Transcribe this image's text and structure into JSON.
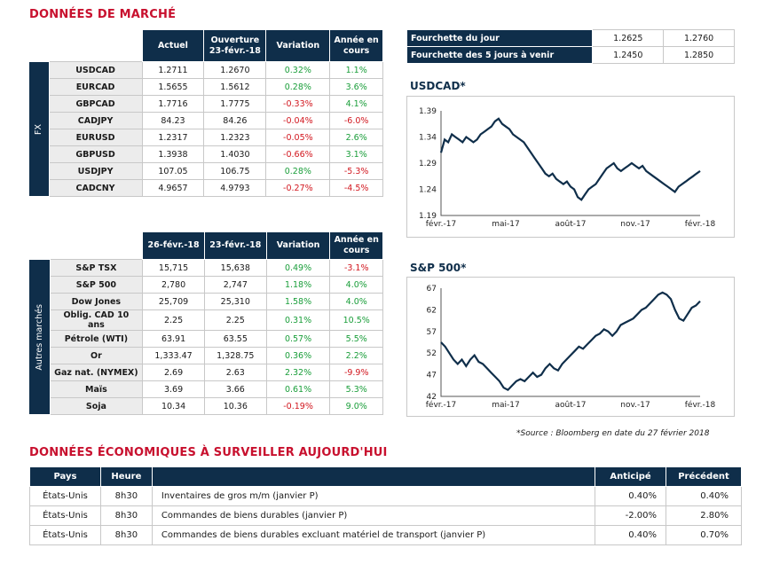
{
  "market_title": "DONNÉES DE MARCHÉ",
  "fx": {
    "side_label": "FX",
    "headers": [
      "Actuel",
      "Ouverture 23-févr.-18",
      "Variation",
      "Année en cours"
    ],
    "rows": [
      {
        "label": "USDCAD",
        "actuel": "1.2711",
        "ouverture": "1.2670",
        "variation": "0.32%",
        "ytd": "1.1%",
        "var_dir": "pos",
        "ytd_dir": "pos"
      },
      {
        "label": "EURCAD",
        "actuel": "1.5655",
        "ouverture": "1.5612",
        "variation": "0.28%",
        "ytd": "3.6%",
        "var_dir": "pos",
        "ytd_dir": "pos"
      },
      {
        "label": "GBPCAD",
        "actuel": "1.7716",
        "ouverture": "1.7775",
        "variation": "-0.33%",
        "ytd": "4.1%",
        "var_dir": "neg",
        "ytd_dir": "pos"
      },
      {
        "label": "CADJPY",
        "actuel": "84.23",
        "ouverture": "84.26",
        "variation": "-0.04%",
        "ytd": "-6.0%",
        "var_dir": "neg",
        "ytd_dir": "neg"
      },
      {
        "label": "EURUSD",
        "actuel": "1.2317",
        "ouverture": "1.2323",
        "variation": "-0.05%",
        "ytd": "2.6%",
        "var_dir": "neg",
        "ytd_dir": "pos"
      },
      {
        "label": "GBPUSD",
        "actuel": "1.3938",
        "ouverture": "1.4030",
        "variation": "-0.66%",
        "ytd": "3.1%",
        "var_dir": "neg",
        "ytd_dir": "pos"
      },
      {
        "label": "USDJPY",
        "actuel": "107.05",
        "ouverture": "106.75",
        "variation": "0.28%",
        "ytd": "-5.3%",
        "var_dir": "pos",
        "ytd_dir": "neg"
      },
      {
        "label": "CADCNY",
        "actuel": "4.9657",
        "ouverture": "4.9793",
        "variation": "-0.27%",
        "ytd": "-4.5%",
        "var_dir": "neg",
        "ytd_dir": "neg"
      }
    ]
  },
  "ranges": [
    {
      "label": "Fourchette du jour",
      "low": "1.2625",
      "high": "1.2760"
    },
    {
      "label": "Fourchette des 5 jours à venir",
      "low": "1.2450",
      "high": "1.2850"
    }
  ],
  "other": {
    "side_label": "Autres marchés",
    "headers": [
      "26-févr.-18",
      "23-févr.-18",
      "Variation",
      "Année en cours"
    ],
    "rows": [
      {
        "label": "S&P TSX",
        "a": "15,715",
        "b": "15,638",
        "variation": "0.49%",
        "ytd": "-3.1%",
        "var_dir": "pos",
        "ytd_dir": "neg"
      },
      {
        "label": "S&P 500",
        "a": "2,780",
        "b": "2,747",
        "variation": "1.18%",
        "ytd": "4.0%",
        "var_dir": "pos",
        "ytd_dir": "pos"
      },
      {
        "label": "Dow Jones",
        "a": "25,709",
        "b": "25,310",
        "variation": "1.58%",
        "ytd": "4.0%",
        "var_dir": "pos",
        "ytd_dir": "pos"
      },
      {
        "label": "Oblig. CAD 10 ans",
        "a": "2.25",
        "b": "2.25",
        "variation": "0.31%",
        "ytd": "10.5%",
        "var_dir": "pos",
        "ytd_dir": "pos"
      },
      {
        "label": "Pétrole (WTI)",
        "a": "63.91",
        "b": "63.55",
        "variation": "0.57%",
        "ytd": "5.5%",
        "var_dir": "pos",
        "ytd_dir": "pos"
      },
      {
        "label": "Or",
        "a": "1,333.47",
        "b": "1,328.75",
        "variation": "0.36%",
        "ytd": "2.2%",
        "var_dir": "pos",
        "ytd_dir": "pos"
      },
      {
        "label": "Gaz nat. (NYMEX)",
        "a": "2.69",
        "b": "2.63",
        "variation": "2.32%",
        "ytd": "-9.9%",
        "var_dir": "pos",
        "ytd_dir": "neg"
      },
      {
        "label": "Maïs",
        "a": "3.69",
        "b": "3.66",
        "variation": "0.61%",
        "ytd": "5.3%",
        "var_dir": "pos",
        "ytd_dir": "pos"
      },
      {
        "label": "Soja",
        "a": "10.34",
        "b": "10.36",
        "variation": "-0.19%",
        "ytd": "9.0%",
        "var_dir": "neg",
        "ytd_dir": "pos"
      }
    ]
  },
  "source_note": "*Source : Bloomberg en date du  27 février 2018",
  "econ_title": "DONNÉES ÉCONOMIQUES À SURVEILLER AUJOURD'HUI",
  "econ": {
    "headers": [
      "Pays",
      "Heure",
      "",
      "Anticipé",
      "Précédent"
    ],
    "rows": [
      {
        "pays": "États-Unis",
        "heure": "8h30",
        "event": "Inventaires de gros m/m (janvier P)",
        "anticipe": "0.40%",
        "precedent": "0.40%"
      },
      {
        "pays": "États-Unis",
        "heure": "8h30",
        "event": "Commandes de biens durables (janvier P)",
        "anticipe": "-2.00%",
        "precedent": "2.80%"
      },
      {
        "pays": "États-Unis",
        "heure": "8h30",
        "event": "Commandes de biens durables excluant matériel de transport (janvier P)",
        "anticipe": "0.40%",
        "precedent": "0.70%"
      }
    ]
  },
  "colors": {
    "navy": "#0f2e4a",
    "red": "#c8102e",
    "pos": "#1a9e3a",
    "neg": "#d2171f"
  },
  "chart_data": [
    {
      "type": "line",
      "title": "USDCAD*",
      "x_ticks": [
        "févr.-17",
        "mai-17",
        "août-17",
        "nov.-17",
        "févr.-18"
      ],
      "y_ticks": [
        "1.39",
        "1.34",
        "1.29",
        "1.24",
        "1.19"
      ],
      "ylim": [
        1.19,
        1.39
      ],
      "series": [
        {
          "values": [
            1.31,
            1.335,
            1.33,
            1.345,
            1.34,
            1.335,
            1.33,
            1.34,
            1.335,
            1.33,
            1.335,
            1.345,
            1.35,
            1.355,
            1.36,
            1.37,
            1.375,
            1.365,
            1.36,
            1.355,
            1.345,
            1.34,
            1.335,
            1.33,
            1.32,
            1.31,
            1.3,
            1.29,
            1.28,
            1.27,
            1.265,
            1.27,
            1.26,
            1.255,
            1.25,
            1.255,
            1.245,
            1.24,
            1.225,
            1.22,
            1.23,
            1.24,
            1.245,
            1.25,
            1.26,
            1.27,
            1.28,
            1.285,
            1.29,
            1.28,
            1.275,
            1.28,
            1.285,
            1.29,
            1.285,
            1.28,
            1.285,
            1.275,
            1.27,
            1.265,
            1.26,
            1.255,
            1.25,
            1.245,
            1.24,
            1.235,
            1.245,
            1.25,
            1.255,
            1.26,
            1.265,
            1.27,
            1.275
          ]
        }
      ]
    },
    {
      "type": "line",
      "title": "S&P 500*",
      "x_ticks": [
        "févr.-17",
        "mai-17",
        "août-17",
        "nov.-17",
        "févr.-18"
      ],
      "y_ticks": [
        "67",
        "62",
        "57",
        "52",
        "47",
        "42"
      ],
      "ylim": [
        42,
        67
      ],
      "series": [
        {
          "values": [
            54.5,
            53.5,
            52,
            50.5,
            49.5,
            50.5,
            49,
            50.5,
            51.5,
            50,
            49.5,
            48.5,
            47.5,
            46.5,
            45.5,
            44,
            43.5,
            44.5,
            45.5,
            46,
            45.5,
            46.5,
            47.5,
            46.5,
            47,
            48.5,
            49.5,
            48.5,
            48,
            49.5,
            50.5,
            51.5,
            52.5,
            53.5,
            53,
            54,
            55,
            56,
            56.5,
            57.5,
            57,
            56,
            57,
            58.5,
            59,
            59.5,
            60,
            61,
            62,
            62.5,
            63.5,
            64.5,
            65.5,
            66,
            65.5,
            64.5,
            62,
            60,
            59.5,
            61,
            62.5,
            63,
            64
          ]
        }
      ]
    }
  ]
}
